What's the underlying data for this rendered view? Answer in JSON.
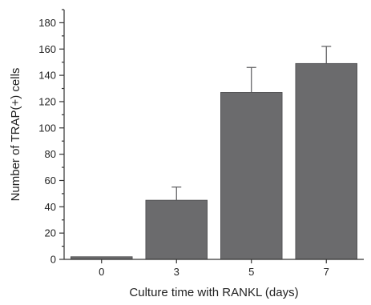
{
  "chart_data": {
    "type": "bar",
    "xlabel": "Culture time with RANKL (days)",
    "ylabel": "Number of TRAP(+) cells",
    "categories": [
      "0",
      "3",
      "5",
      "7"
    ],
    "values": [
      2,
      45,
      127,
      149
    ],
    "errors": [
      0.5,
      10,
      19,
      13
    ],
    "ylim": [
      0,
      190
    ],
    "yticks": [
      "0",
      "20",
      "40",
      "60",
      "80",
      "100",
      "120",
      "140",
      "160",
      "180"
    ],
    "y_minor_step": 10,
    "grid": false,
    "bar_color": "#6b6b6d"
  }
}
